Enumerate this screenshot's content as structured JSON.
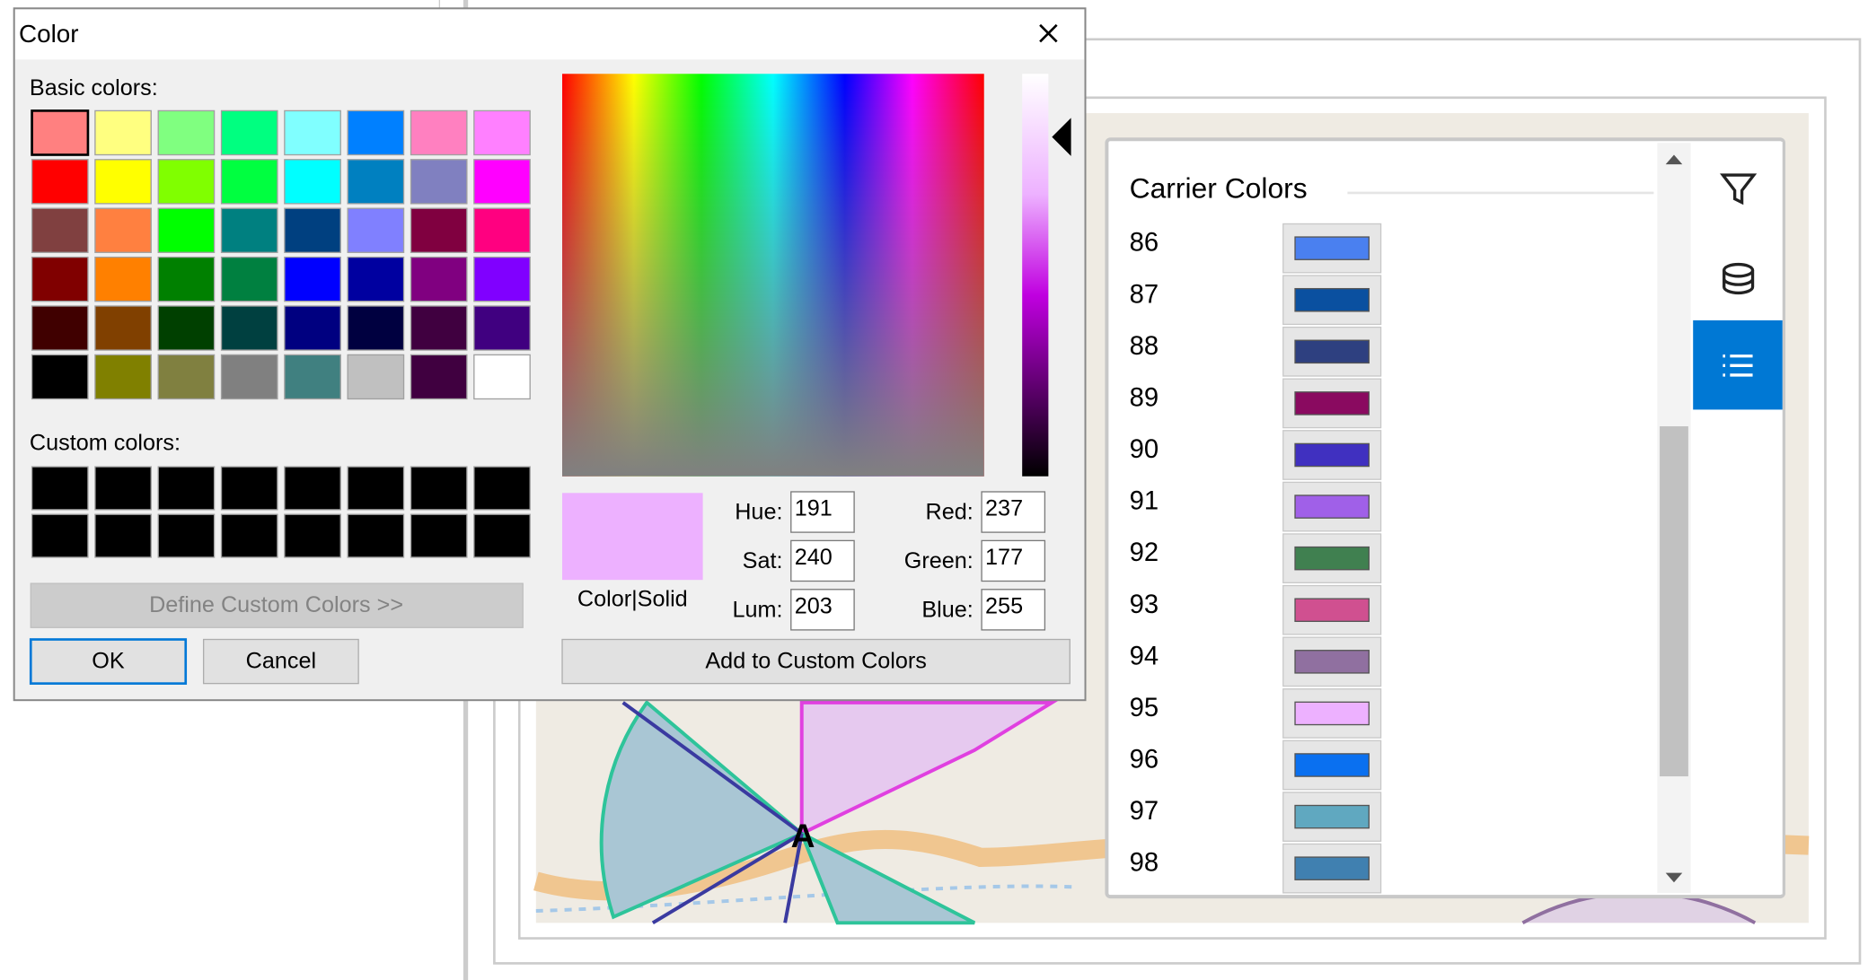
{
  "dialog": {
    "title": "Color",
    "basic_label": "Basic colors:",
    "custom_label": "Custom colors:",
    "define_button": "Define Custom Colors >>",
    "ok": "OK",
    "cancel": "Cancel",
    "preview_label": "Color|Solid",
    "add_button": "Add to Custom Colors",
    "preview_color": "#edb1ff",
    "basic_colors": [
      "#ff8080",
      "#ffff80",
      "#80ff80",
      "#00ff80",
      "#80ffff",
      "#0080ff",
      "#ff80c0",
      "#ff80ff",
      "#ff0000",
      "#ffff00",
      "#80ff00",
      "#00ff40",
      "#00ffff",
      "#0080c0",
      "#8080c0",
      "#ff00ff",
      "#804040",
      "#ff8040",
      "#00ff00",
      "#008080",
      "#004080",
      "#8080ff",
      "#800040",
      "#ff0080",
      "#800000",
      "#ff8000",
      "#008000",
      "#008040",
      "#0000ff",
      "#0000a0",
      "#800080",
      "#8000ff",
      "#400000",
      "#804000",
      "#004000",
      "#004040",
      "#000080",
      "#000040",
      "#400040",
      "#400080",
      "#000000",
      "#808000",
      "#808040",
      "#808080",
      "#408080",
      "#c0c0c0",
      "#400040",
      "#ffffff"
    ],
    "fields": [
      {
        "label": "Hue:",
        "value": 191
      },
      {
        "label": "Sat:",
        "value": 240
      },
      {
        "label": "Lum:",
        "value": 203
      },
      {
        "label": "Red:",
        "value": 237
      },
      {
        "label": "Green:",
        "value": 177
      },
      {
        "label": "Blue:",
        "value": 255
      }
    ]
  },
  "panel": {
    "title": "Carrier Colors",
    "items": [
      {
        "label": 86,
        "color": "#4a80f0"
      },
      {
        "label": 87,
        "color": "#0a50a0"
      },
      {
        "label": 88,
        "color": "#2e4080"
      },
      {
        "label": 89,
        "color": "#8a0a60"
      },
      {
        "label": 90,
        "color": "#4030c0"
      },
      {
        "label": 91,
        "color": "#a060e8"
      },
      {
        "label": 92,
        "color": "#408050"
      },
      {
        "label": 93,
        "color": "#d05090"
      },
      {
        "label": 94,
        "color": "#9070a0"
      },
      {
        "label": 95,
        "color": "#edb1ff"
      },
      {
        "label": 96,
        "color": "#0a70f0"
      },
      {
        "label": 97,
        "color": "#60a8c0"
      },
      {
        "label": 98,
        "color": "#4080b0"
      }
    ]
  },
  "map": {
    "site_label": "A"
  }
}
